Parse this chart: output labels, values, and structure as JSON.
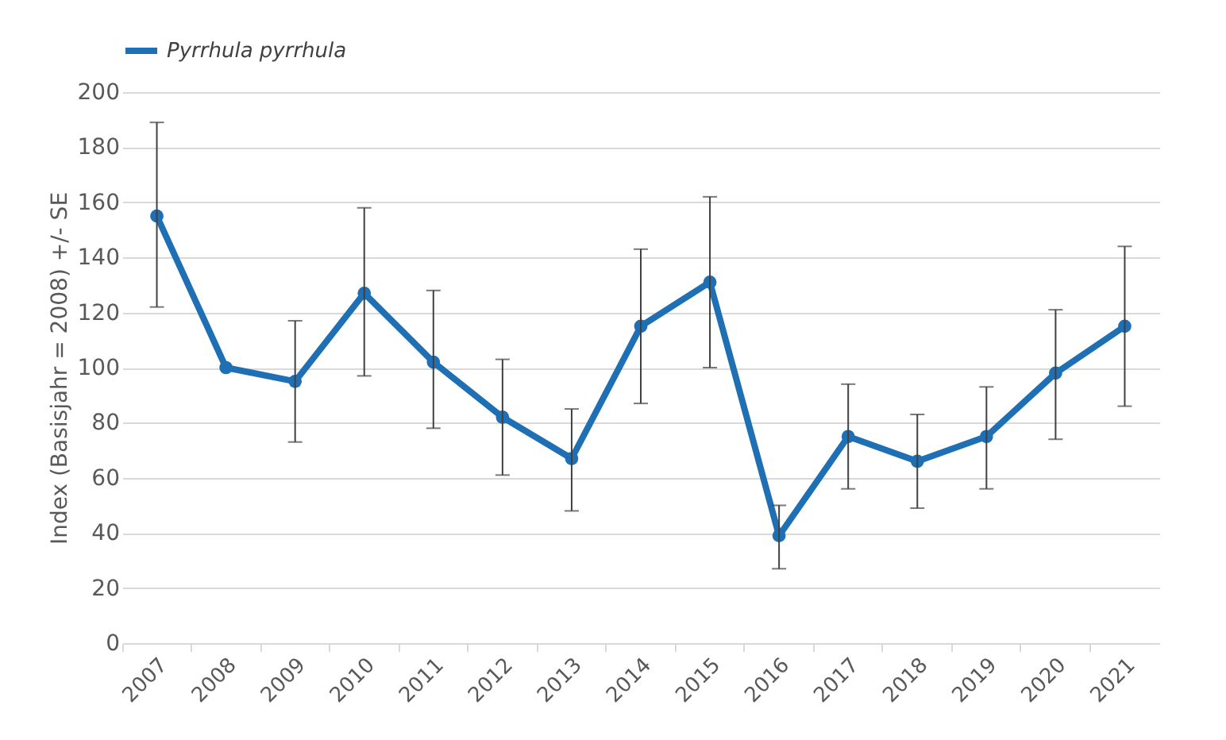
{
  "chart_data": {
    "type": "line",
    "ylabel": "Index (Basisjahr  = 2008) +/- SE",
    "categories": [
      "2007",
      "2008",
      "2009",
      "2010",
      "2011",
      "2012",
      "2013",
      "2014",
      "2015",
      "2016",
      "2017",
      "2018",
      "2019",
      "2020",
      "2021"
    ],
    "series": [
      {
        "name": "Pyrrhula pyrrhula",
        "color": "#1f6fb4",
        "values": [
          155,
          100,
          95,
          127,
          102,
          82,
          67,
          115,
          131,
          39,
          75,
          66,
          75,
          98,
          115
        ],
        "errors": [
          [
            122,
            189
          ],
          null,
          [
            73,
            117
          ],
          [
            97,
            158
          ],
          [
            78,
            128
          ],
          [
            61,
            103
          ],
          [
            48,
            85
          ],
          [
            87,
            143
          ],
          [
            100,
            162
          ],
          [
            27,
            50
          ],
          [
            56,
            94
          ],
          [
            49,
            83
          ],
          [
            56,
            93
          ],
          [
            74,
            121
          ],
          [
            86,
            144
          ]
        ]
      }
    ],
    "ylim": [
      0,
      200
    ],
    "yticks": [
      0,
      20,
      40,
      60,
      80,
      100,
      120,
      140,
      160,
      180,
      200
    ],
    "grid": "y",
    "legend": "top",
    "marker": "circle",
    "line_style": "solid"
  }
}
